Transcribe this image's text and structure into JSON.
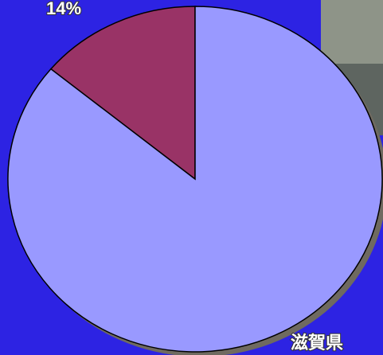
{
  "chart_data": {
    "type": "pie",
    "categories": [
      null,
      "滋賀県"
    ],
    "values": [
      14,
      86
    ],
    "value_labels": [
      "14%",
      null
    ],
    "colors": [
      "#993366",
      "#9999ff"
    ]
  }
}
